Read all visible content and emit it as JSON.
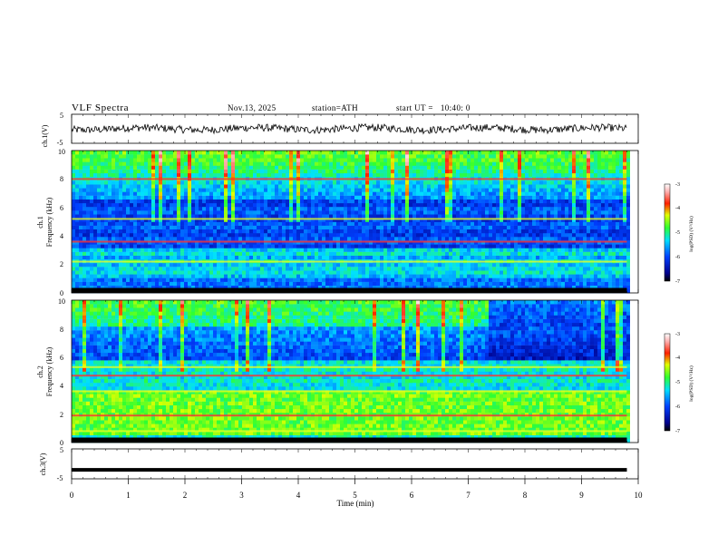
{
  "header": {
    "title": "VLF Spectra",
    "date": "Nov.13, 2025",
    "station": "station=ATH",
    "start_ut": "start UT =   10:40: 0"
  },
  "chart_data": [
    {
      "type": "line",
      "panel": "ch1-waveform",
      "ylabel": "ch.1(V)",
      "ylim": [
        -5,
        5
      ],
      "yticks": [
        "5",
        "-5"
      ],
      "x_range_min": [
        0,
        9.8
      ],
      "trace_color": "#000000",
      "description_values": "noisy waveform centred near 0 V"
    },
    {
      "type": "heatmap",
      "panel": "ch1-spectrogram",
      "ylabel": "ch.1",
      "ylabel2": "Frequency  (kHz)",
      "ylim": [
        0,
        10
      ],
      "yticks": [
        "0",
        "2",
        "4",
        "6",
        "8",
        "10"
      ],
      "x_range_min": [
        0,
        9.8
      ],
      "colorbar": {
        "label": "log(PSD) (V²/Hz)",
        "range": [
          -7,
          -3
        ],
        "ticks": [
          "-3",
          "-4",
          "-5",
          "-6",
          "-7"
        ]
      },
      "bands_khz": [
        2.2,
        3.6,
        5.2,
        8.0
      ]
    },
    {
      "type": "heatmap",
      "panel": "ch2-spectrogram",
      "ylabel": "ch.2",
      "ylabel2": "Frequency  (kHz)",
      "ylim": [
        0,
        10
      ],
      "yticks": [
        "0",
        "2",
        "4",
        "6",
        "8",
        "10"
      ],
      "x_range_min": [
        0,
        9.8
      ],
      "colorbar": {
        "label": "log(PSD) (V²/Hz)",
        "range": [
          -7,
          -3
        ],
        "ticks": [
          "-3",
          "-4",
          "-5",
          "-6",
          "-7"
        ]
      },
      "bands_khz": [
        0.8,
        1.9,
        3.6,
        4.7,
        5.3
      ]
    },
    {
      "type": "line",
      "panel": "ch3-waveform",
      "ylabel": "ch.3(V)",
      "ylim": [
        -5,
        5
      ],
      "yticks": [
        "5",
        "-5"
      ],
      "x_range_min": [
        0,
        9.8
      ],
      "constant_value": -2,
      "trace_color": "#000000"
    }
  ],
  "xaxis": {
    "label": "Time  (min)",
    "ticks": [
      "0",
      "1",
      "2",
      "3",
      "4",
      "5",
      "6",
      "7",
      "8",
      "9",
      "10"
    ],
    "range": [
      0,
      10
    ]
  },
  "colors": {
    "low": "#000000",
    "dark_blue": "#0000c8",
    "blue": "#0050ff",
    "cyan": "#00d0ff",
    "green": "#40ff40",
    "yellow": "#ffff00",
    "red": "#ff2020",
    "high": "#ffffff"
  }
}
